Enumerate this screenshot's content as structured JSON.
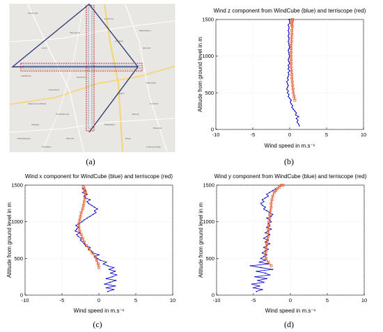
{
  "panel_labels": [
    "(a)",
    "(b)",
    "(c)",
    "(d)"
  ],
  "map": {
    "place_labels": [
      "Saint-Clar",
      "Lectoure",
      "Fleurance",
      "Montestruc",
      "Auch",
      "Gimont",
      "Castelnau",
      "Mauvezin",
      "Lavardens",
      "Jegun",
      "Valence-sur-Baise",
      "Condom",
      "Vic-Fezensac",
      "Barran",
      "Seissan",
      "Masseube",
      "Mirande",
      "Montesquiou",
      "Marciac",
      "Pavie",
      "Samatan",
      "L'Isle-Jourdain",
      "Saramon",
      "Lombez"
    ],
    "colors": {
      "background": "#e9e7e3",
      "flight_track": "#2e3b7a",
      "crossing_track": "#b3261e",
      "road": "#f4d67a",
      "secondary_road": "#ffffff"
    }
  },
  "chart_data": [
    {
      "id": "b",
      "type": "line",
      "title": "Wind z component from WindCube (blue) and terriscope (red)",
      "xlabel": "Wind speed in m.s⁻¹",
      "ylabel": "Altitude from ground level in m",
      "xlim": [
        -10,
        10
      ],
      "ylim": [
        0,
        1500
      ],
      "xticks": [
        -10,
        -5,
        0,
        5,
        10
      ],
      "yticks": [
        0,
        500,
        1000,
        1500
      ],
      "grid": true,
      "series": [
        {
          "color": "#1010c8",
          "marker": "dot",
          "x": [
            1.3,
            1.2,
            1.0,
            1.1,
            0.9,
            1.2,
            0.8,
            0.9,
            0.7,
            0.5,
            0.3,
            0.4,
            0.2,
            0.1,
            0.2,
            0.0,
            -0.2,
            -0.1,
            -0.3,
            -0.2,
            -0.4,
            -0.3,
            -0.2,
            -0.3,
            -0.4,
            -0.2,
            -0.3,
            -0.2,
            -0.1,
            -0.2,
            0.0,
            -0.2,
            -0.1,
            -0.2,
            0.0,
            -0.1,
            -0.2,
            -0.1,
            0.0,
            -0.1,
            -0.1,
            -0.2,
            -0.1,
            0.0,
            -0.1,
            -0.1,
            -0.2,
            -0.1,
            -0.1,
            -0.2,
            -0.1,
            -0.1,
            -0.2,
            -0.1,
            -0.1,
            -0.2,
            0.0,
            0.0,
            -0.1,
            0.0,
            0.0
          ],
          "y": [
            50,
            75,
            100,
            125,
            150,
            175,
            200,
            225,
            250,
            275,
            300,
            325,
            350,
            375,
            400,
            425,
            450,
            475,
            500,
            525,
            550,
            575,
            600,
            625,
            650,
            675,
            700,
            725,
            750,
            775,
            800,
            825,
            850,
            875,
            900,
            925,
            950,
            975,
            1000,
            1025,
            1050,
            1075,
            1100,
            1125,
            1150,
            1175,
            1200,
            1225,
            1250,
            1275,
            1300,
            1325,
            1350,
            1375,
            1400,
            1425,
            1450,
            1475,
            1500,
            1500,
            1500
          ]
        },
        {
          "color": "#e35b2e",
          "marker": "square",
          "x": [
            0.7,
            0.6,
            0.5,
            0.45,
            0.4,
            0.35,
            0.3,
            0.3,
            0.25,
            0.2,
            0.2,
            0.2,
            0.2,
            0.2,
            0.2,
            0.2,
            0.25,
            0.25,
            0.3,
            0.3,
            0.35,
            0.3,
            0.3,
            0.35,
            0.35,
            0.4
          ],
          "y": [
            400,
            450,
            500,
            550,
            600,
            650,
            700,
            750,
            800,
            850,
            900,
            950,
            1000,
            1050,
            1100,
            1150,
            1200,
            1250,
            1300,
            1350,
            1400,
            1425,
            1450,
            1475,
            1500,
            1500
          ]
        }
      ]
    },
    {
      "id": "c",
      "type": "line",
      "title": "Wind x component for WindCube (blue) and terriscope (red)",
      "xlabel": "Wind speed in m.s⁻¹",
      "ylabel": "Altitude from ground level in m",
      "xlim": [
        -10,
        10
      ],
      "ylim": [
        0,
        1500
      ],
      "xticks": [
        -10,
        -5,
        0,
        5,
        10
      ],
      "yticks": [
        0,
        500,
        1000,
        1500
      ],
      "grid": true,
      "series": [
        {
          "color": "#1010c8",
          "marker": "dot",
          "x": [
            1.2,
            2.0,
            1.0,
            2.2,
            0.8,
            1.5,
            2.3,
            1.0,
            1.8,
            2.4,
            1.6,
            2.2,
            1.4,
            2.0,
            1.2,
            0.6,
            1.0,
            0.2,
            -0.2,
            -0.6,
            0.0,
            -0.8,
            -1.0,
            -1.4,
            -1.2,
            -1.8,
            -2.0,
            -2.2,
            -2.5,
            -2.4,
            -2.8,
            -3.0,
            -2.6,
            -3.2,
            -3.0,
            -2.8,
            -3.1,
            -2.7,
            -2.3,
            -2.0,
            -1.6,
            -1.2,
            -0.8,
            -0.4,
            -0.6,
            -0.2,
            -0.6,
            -1.0,
            -1.4,
            -1.6,
            -1.2,
            -1.8,
            -2.0,
            -1.6,
            -2.2,
            -1.8,
            -2.2
          ],
          "y": [
            50,
            75,
            100,
            125,
            150,
            175,
            200,
            225,
            250,
            275,
            300,
            325,
            350,
            375,
            400,
            425,
            450,
            475,
            500,
            525,
            550,
            575,
            600,
            625,
            650,
            675,
            700,
            725,
            750,
            775,
            800,
            825,
            850,
            875,
            900,
            925,
            950,
            975,
            1000,
            1025,
            1050,
            1075,
            1100,
            1125,
            1150,
            1175,
            1200,
            1225,
            1250,
            1275,
            1300,
            1325,
            1350,
            1375,
            1400,
            1425,
            1450
          ]
        },
        {
          "color": "#e35b2e",
          "marker": "square",
          "x": [
            0.0,
            -0.1,
            -0.3,
            -0.5,
            -0.9,
            -1.3,
            -1.7,
            -2.0,
            -2.2,
            -2.4,
            -2.6,
            -2.7,
            -2.7,
            -2.6,
            -2.5,
            -2.4,
            -2.2,
            -2.1,
            -2.0,
            -1.9,
            -1.8,
            -1.8,
            -1.9,
            -2.0,
            -2.1,
            -2.1
          ],
          "y": [
            375,
            425,
            475,
            525,
            575,
            625,
            675,
            725,
            775,
            825,
            875,
            925,
            975,
            1025,
            1075,
            1125,
            1175,
            1225,
            1275,
            1325,
            1375,
            1400,
            1425,
            1450,
            1475,
            1475
          ]
        }
      ]
    },
    {
      "id": "d",
      "type": "line",
      "title": "Wind y component from WindCube (blue) and terriscope (red)",
      "xlabel": "Wind speed in m.s⁻¹",
      "ylabel": "Altitude from ground level in m",
      "xlim": [
        -10,
        10
      ],
      "ylim": [
        0,
        1500
      ],
      "xticks": [
        -10,
        -5,
        0,
        5,
        10
      ],
      "yticks": [
        0,
        500,
        1000,
        1500
      ],
      "grid": true,
      "series": [
        {
          "color": "#1010c8",
          "marker": "dot",
          "x": [
            -4.6,
            -3.8,
            -5.0,
            -4.2,
            -5.2,
            -3.6,
            -4.4,
            -3.2,
            -4.8,
            -2.8,
            -3.4,
            -4.6,
            -2.4,
            -4.0,
            -5.4,
            -3.0,
            -4.2,
            -3.4,
            -4.0,
            -3.6,
            -3.2,
            -3.8,
            -3.4,
            -3.0,
            -3.6,
            -3.2,
            -2.8,
            -3.4,
            -3.0,
            -3.6,
            -3.2,
            -2.8,
            -3.4,
            -3.0,
            -2.6,
            -3.2,
            -2.8,
            -3.0,
            -2.6,
            -2.8,
            -3.2,
            -2.6,
            -2.4,
            -2.8,
            -3.2,
            -3.6,
            -3.4,
            -3.8,
            -4.0,
            -3.6,
            -3.8,
            -3.4,
            -3.0,
            -3.2,
            -2.8,
            -2.4,
            -2.0
          ],
          "y": [
            50,
            75,
            100,
            125,
            150,
            175,
            200,
            225,
            250,
            275,
            300,
            325,
            350,
            375,
            400,
            425,
            450,
            475,
            500,
            525,
            550,
            575,
            600,
            625,
            650,
            675,
            700,
            725,
            750,
            775,
            800,
            825,
            850,
            875,
            900,
            925,
            950,
            975,
            1000,
            1025,
            1050,
            1075,
            1100,
            1125,
            1150,
            1175,
            1200,
            1225,
            1250,
            1275,
            1300,
            1325,
            1350,
            1375,
            1400,
            1425,
            1450
          ]
        },
        {
          "color": "#e35b2e",
          "marker": "square",
          "x": [
            -2.6,
            -3.0,
            -3.3,
            -3.4,
            -3.3,
            -3.3,
            -3.2,
            -3.1,
            -3.0,
            -3.0,
            -3.0,
            -2.9,
            -2.9,
            -2.8,
            -2.8,
            -2.7,
            -2.6,
            -2.6,
            -2.5,
            -2.4,
            -2.2,
            -2.0,
            -1.8,
            -1.5,
            -1.2,
            -1.0
          ],
          "y": [
            400,
            450,
            500,
            550,
            600,
            650,
            700,
            750,
            800,
            850,
            900,
            950,
            1000,
            1050,
            1100,
            1150,
            1200,
            1250,
            1300,
            1350,
            1400,
            1425,
            1450,
            1475,
            1500,
            1500
          ]
        }
      ]
    }
  ]
}
